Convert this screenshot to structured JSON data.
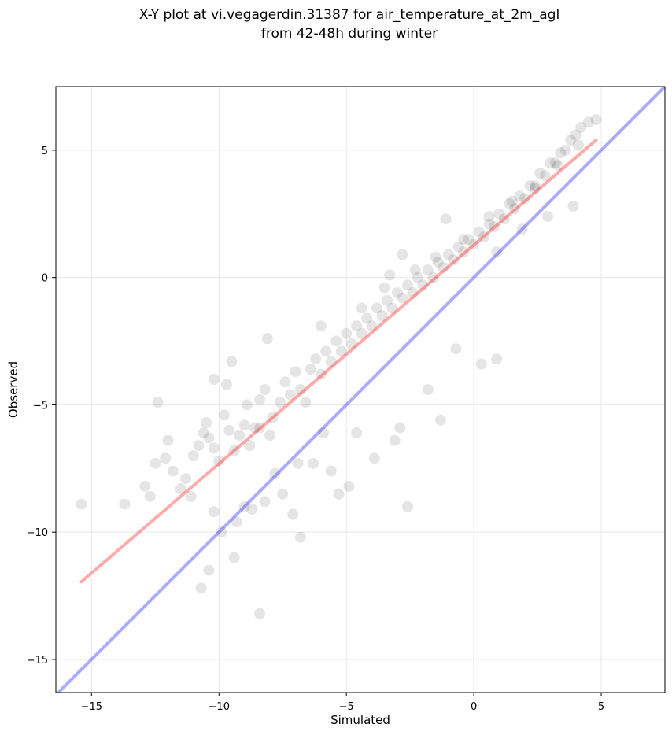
{
  "chart_data": {
    "type": "scatter",
    "title_line1": "X-Y plot at vi.vegagerdin.31387 for air_temperature_at_2m_agl",
    "title_line2": "from 42-48h during winter",
    "xlabel": "Simulated",
    "ylabel": "Observed",
    "xlim": [
      -16.4,
      7.5
    ],
    "ylim": [
      -16.3,
      7.5
    ],
    "xticks": [
      -15,
      -10,
      -5,
      0,
      5
    ],
    "yticks": [
      -15,
      -10,
      -5,
      0,
      5
    ],
    "xtick_labels": [
      "−15",
      "−10",
      "−5",
      "0",
      "5"
    ],
    "ytick_labels": [
      "−15",
      "−10",
      "−5",
      "0",
      "5"
    ],
    "grid": true,
    "point_color": "#000000",
    "regression_color": "#ff0000",
    "identity_color": "#0000ff",
    "series": [
      {
        "kind": "points",
        "x": [
          -15.4,
          -13.7,
          -12.9,
          -12.5,
          -12.4,
          -12.0,
          -11.8,
          -11.3,
          -11.0,
          -10.6,
          -10.5,
          -10.4,
          -10.2,
          -10.0,
          -9.8,
          -9.6,
          -9.4,
          -9.2,
          -9.0,
          -8.9,
          -8.8,
          -8.6,
          -8.4,
          -8.2,
          -8.0,
          -7.9,
          -7.6,
          -7.4,
          -7.2,
          -7.0,
          -6.8,
          -6.6,
          -6.4,
          -6.2,
          -6.0,
          -5.8,
          -5.6,
          -5.4,
          -5.2,
          -5.0,
          -4.8,
          -4.6,
          -4.4,
          -4.2,
          -4.0,
          -3.8,
          -3.6,
          -3.4,
          -3.2,
          -3.0,
          -2.8,
          -2.6,
          -2.4,
          -2.2,
          -2.0,
          -1.8,
          -1.6,
          -1.4,
          -1.2,
          -1.0,
          -0.8,
          -0.6,
          -0.4,
          -0.2,
          0.0,
          0.2,
          0.4,
          0.6,
          0.8,
          1.0,
          1.2,
          1.4,
          1.6,
          1.8,
          2.0,
          2.2,
          2.4,
          2.6,
          2.8,
          3.0,
          3.2,
          3.4,
          3.6,
          3.8,
          4.0,
          4.2,
          4.5,
          -10.7,
          -10.4,
          -9.9,
          -9.4,
          -8.4,
          -7.1,
          -6.8,
          -5.3,
          -3.9,
          -2.6,
          -1.3,
          0.3,
          0.9,
          -1.8,
          -0.7,
          -12.1,
          -11.1,
          -10.2,
          -9.0,
          -8.2,
          -7.8,
          -6.3,
          -5.9,
          -4.6,
          -3.1,
          -2.9,
          -4.9,
          -5.6,
          -6.9,
          -7.5,
          -8.7,
          -9.3,
          -11.5,
          -12.7,
          -10.8,
          -9.7,
          -8.1,
          -6.0,
          -4.4,
          -3.5,
          -2.3,
          -1.5,
          -0.4,
          0.6,
          1.5,
          2.4,
          3.3,
          4.1,
          4.8,
          -8.4,
          -9.5,
          -10.2,
          -3.3,
          -2.8,
          -1.1,
          0.9,
          1.9,
          2.9,
          3.9
        ],
        "y": [
          -8.9,
          -8.9,
          -8.2,
          -7.3,
          -4.9,
          -6.4,
          -7.6,
          -7.9,
          -7.0,
          -6.1,
          -5.7,
          -6.3,
          -6.7,
          -7.2,
          -5.4,
          -6.0,
          -6.8,
          -6.2,
          -5.8,
          -5.0,
          -6.6,
          -5.9,
          -4.8,
          -4.4,
          -6.2,
          -5.5,
          -4.9,
          -4.1,
          -4.6,
          -3.7,
          -4.4,
          -4.9,
          -3.6,
          -3.2,
          -3.8,
          -2.9,
          -3.3,
          -2.5,
          -2.9,
          -2.2,
          -2.6,
          -1.9,
          -2.2,
          -1.6,
          -1.9,
          -1.2,
          -1.5,
          -0.9,
          -1.2,
          -0.6,
          -0.8,
          -0.3,
          -0.6,
          0.0,
          -0.3,
          0.3,
          0.0,
          0.6,
          0.4,
          0.9,
          0.7,
          1.2,
          1.0,
          1.5,
          1.3,
          1.8,
          1.6,
          2.1,
          2.0,
          2.5,
          2.3,
          2.9,
          2.7,
          3.2,
          3.1,
          3.6,
          3.6,
          4.1,
          4.0,
          4.5,
          4.5,
          4.9,
          5.0,
          5.4,
          5.6,
          5.9,
          6.1,
          -12.2,
          -11.5,
          -10.0,
          -11.0,
          -13.2,
          -9.3,
          -10.2,
          -8.5,
          -7.1,
          -9.0,
          -5.6,
          -3.4,
          -3.2,
          -4.4,
          -2.8,
          -7.1,
          -8.6,
          -9.2,
          -9.0,
          -8.8,
          -7.7,
          -7.3,
          -6.1,
          -6.1,
          -6.4,
          -5.9,
          -8.2,
          -7.6,
          -7.3,
          -8.5,
          -9.1,
          -9.6,
          -8.3,
          -8.6,
          -6.6,
          -4.2,
          -2.4,
          -1.9,
          -1.2,
          -0.4,
          0.3,
          0.8,
          1.5,
          2.4,
          3.0,
          3.5,
          4.4,
          5.2,
          6.2,
          -5.9,
          -3.3,
          -4.0,
          0.1,
          0.9,
          2.3,
          1.0,
          1.9,
          2.4,
          2.8
        ]
      },
      {
        "kind": "regression",
        "x": [
          -15.4,
          4.8
        ],
        "y": [
          -11.95,
          5.4
        ]
      },
      {
        "kind": "identity",
        "x": [
          -16.4,
          7.5
        ],
        "y": [
          -16.4,
          7.5
        ]
      }
    ]
  }
}
